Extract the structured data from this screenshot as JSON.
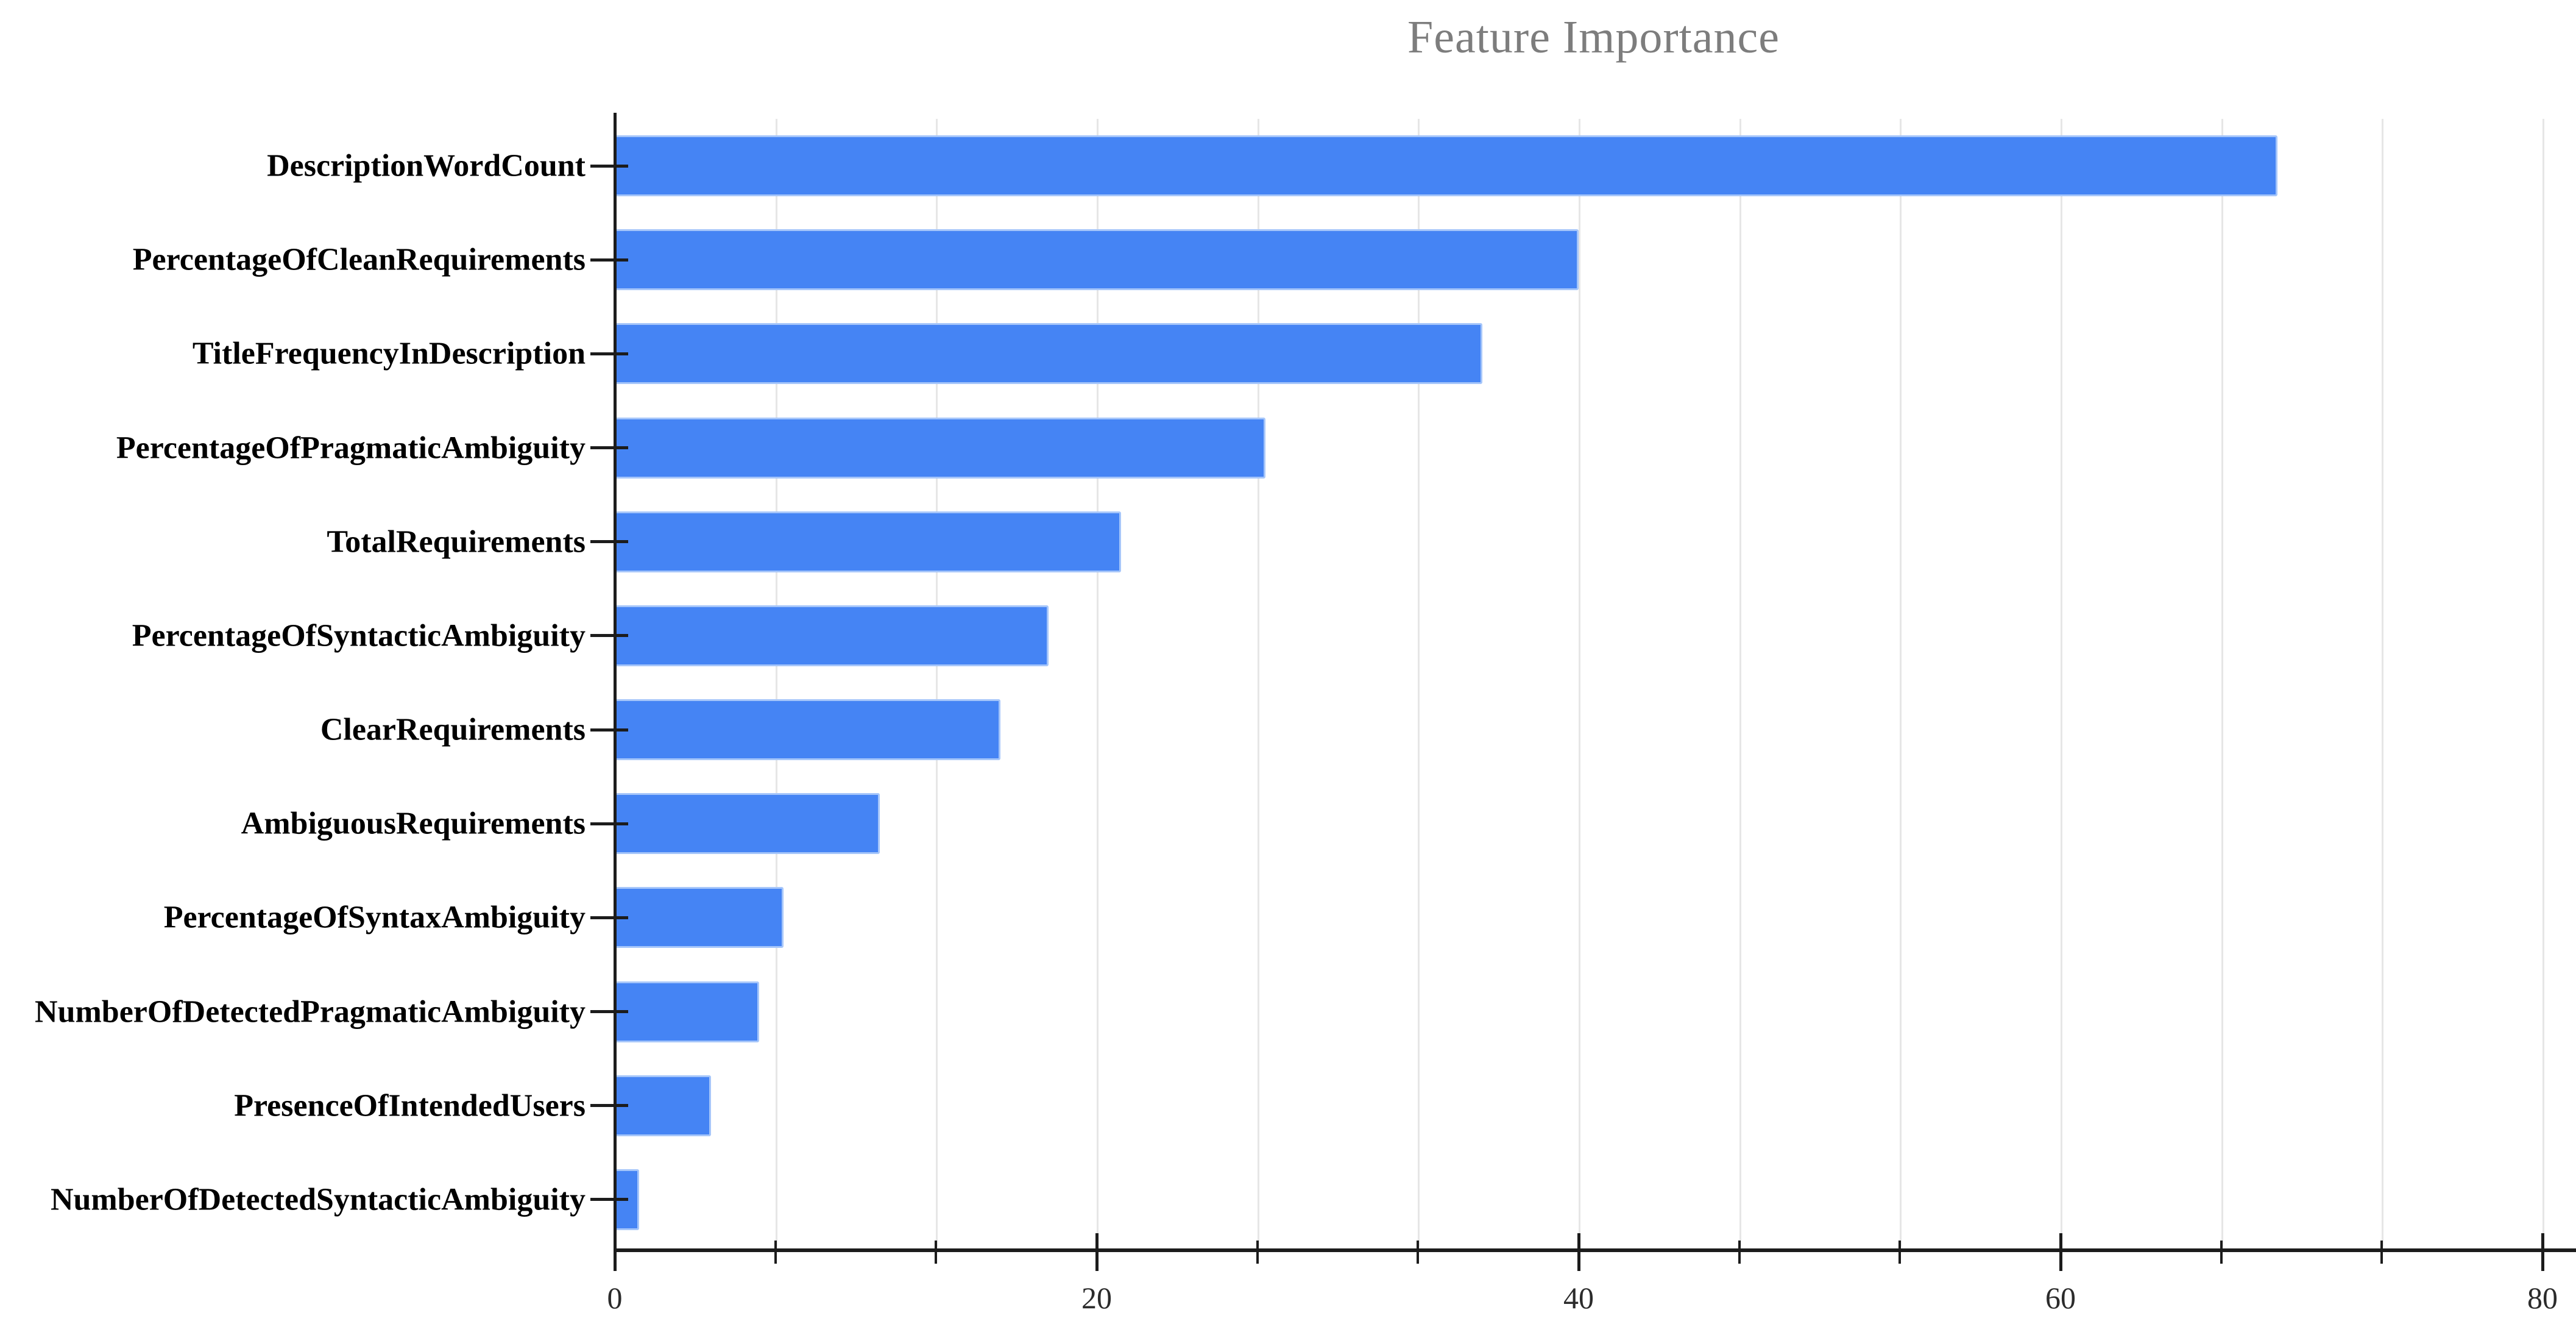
{
  "chart": {
    "title": "Feature Importance",
    "title_color": "#7d7d7d",
    "bar_color": "#4584f4",
    "bar_border_color": "#a6c6fa",
    "grid_color": "#e6e6e6",
    "axis_color": "#1c1c1c",
    "category_label_color": "#000000",
    "tick_label_color": "#2b2b2b",
    "background": "#ffffff"
  },
  "chart_data": {
    "type": "bar",
    "orientation": "horizontal",
    "title": "Feature Importance",
    "categories": [
      "DescriptionWordCount",
      "PercentageOfCleanRequirements",
      "TitleFrequencyInDescription",
      "PercentageOfPragmaticAmbiguity",
      "TotalRequirements",
      "PercentageOfSyntacticAmbiguity",
      "ClearRequirements",
      "AmbiguousRequirements",
      "PercentageOfSyntaxAmbiguity",
      "NumberOfDetectedPragmaticAmbiguity",
      "PresenceOfIntendedUsers",
      "NumberOfDetectedSyntacticAmbiguity"
    ],
    "values": [
      69,
      40,
      36,
      27,
      21,
      18,
      16,
      11,
      7,
      6,
      4,
      1
    ],
    "xlabel": "",
    "ylabel": "",
    "xlim": [
      0,
      81.2
    ],
    "x_major_ticks": [
      0,
      20,
      40,
      60,
      80
    ],
    "x_major_tick_labels": [
      "0",
      "20",
      "40",
      "60",
      "80"
    ],
    "x_minor_tick_step": 6.6667,
    "grid": "vertical-minor-and-major",
    "legend": "none"
  }
}
